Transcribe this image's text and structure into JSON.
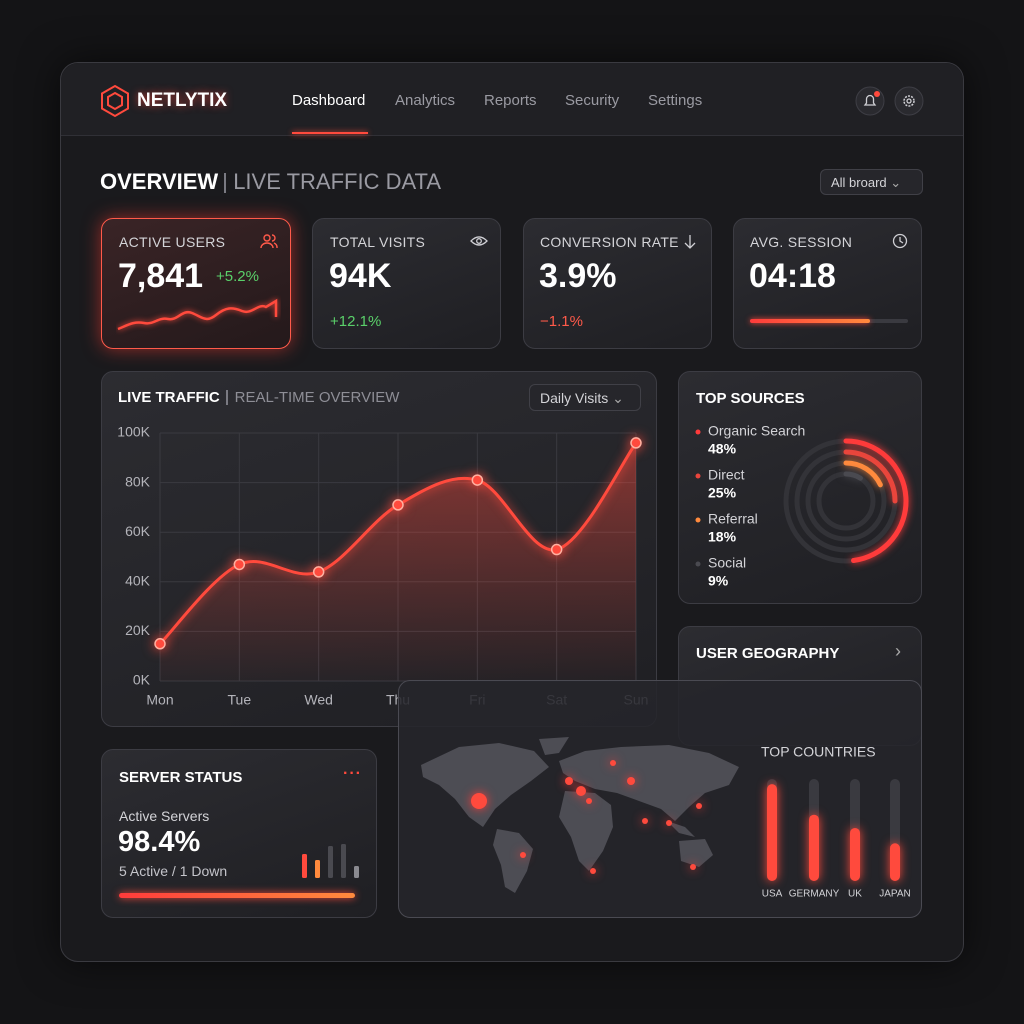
{
  "nav": {
    "brand": "NETLYTIX",
    "items": [
      "Dashboard",
      "Analytics",
      "Reports",
      "Security",
      "Settings"
    ]
  },
  "header": {
    "title": "OVERVIEW",
    "subtitle": "LIVE TRAFFIC DATA",
    "filter": "All broard"
  },
  "kpis": [
    {
      "label": "ACTIVE USERS",
      "value": "7,841",
      "change": "+5.2%"
    },
    {
      "label": "TOTAL VISITS",
      "value": "94K",
      "change": "+12.1%"
    },
    {
      "label": "CONVERSION RATE",
      "value": "3.9%",
      "change": "−1.1%"
    },
    {
      "label": "AVG. SESSION",
      "value": "04:18"
    }
  ],
  "traffic_panel": {
    "filter": "Daily Visits"
  },
  "geography": {
    "title": "USER GEOGRAPHY"
  },
  "server": {
    "title": "SERVER STATUS",
    "label": "Active Servers",
    "value": "98.4%",
    "detail": "5 Active / 1 Down"
  },
  "chart_data": [
    {
      "type": "line",
      "title": "LIVE TRAFFIC",
      "subtitle": "REAL-TIME OVERVIEW",
      "categories": [
        "Mon",
        "Tue",
        "Wed",
        "Thu",
        "Fri",
        "Sat",
        "Sun"
      ],
      "values": [
        15000,
        47000,
        44000,
        71000,
        81000,
        53000,
        96000
      ],
      "color": "#ff4a3d",
      "ylim": [
        0,
        100000
      ],
      "yticks": [
        {
          "value": 0,
          "label": "0K"
        },
        {
          "value": 20000,
          "label": "20K"
        },
        {
          "value": 40000,
          "label": "40K"
        },
        {
          "value": 60000,
          "label": "60K"
        },
        {
          "value": 80000,
          "label": "80K"
        },
        {
          "value": 100000,
          "label": "100K"
        }
      ],
      "grid": true
    },
    {
      "type": "pie",
      "title": "TOP SOURCES",
      "categories": [
        "Organic Search",
        "Direct",
        "Referral",
        "Social"
      ],
      "values": [
        48,
        25,
        18,
        9
      ],
      "value_labels": [
        "48%",
        "25%",
        "18%",
        "9%"
      ],
      "colors": [
        "#ff3b3b",
        "#e9453c",
        "#ff8a3d",
        "#4a4a50"
      ]
    },
    {
      "type": "bar",
      "title": "TOP COUNTRIES",
      "categories": [
        "USA",
        "GERMANY",
        "UK",
        "JAPAN"
      ],
      "values": [
        95,
        65,
        52,
        37
      ],
      "ylim": [
        0,
        100
      ],
      "color": "#ff4a3d"
    }
  ]
}
